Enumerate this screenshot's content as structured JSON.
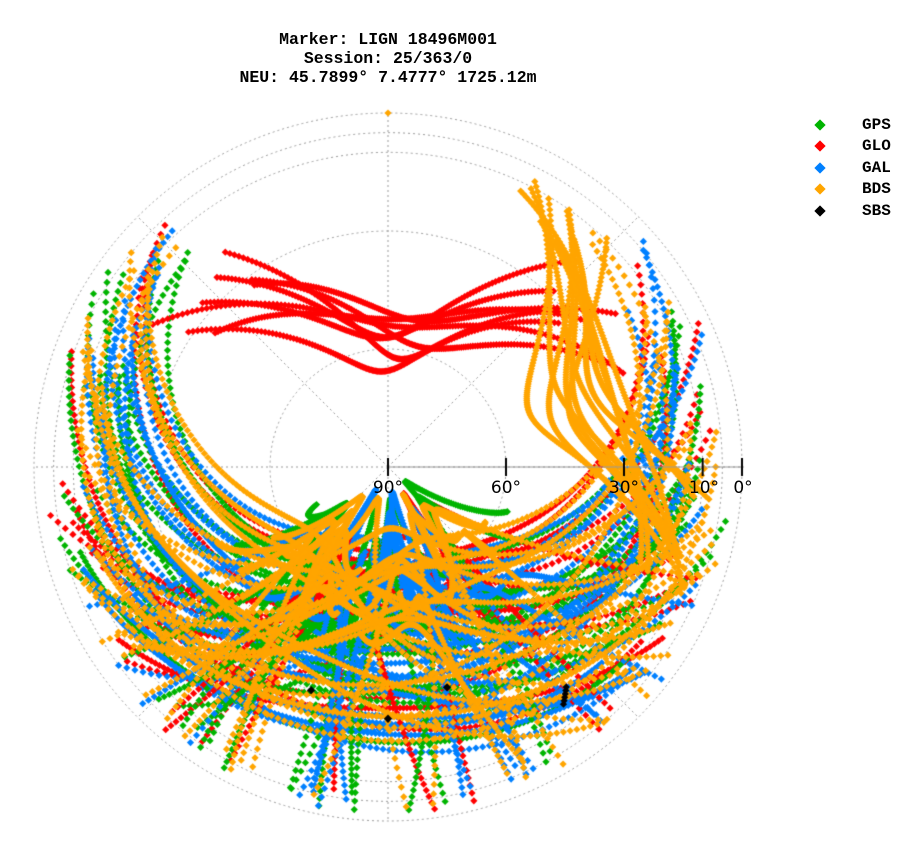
{
  "title": {
    "line1": "Marker: LIGN 18496M001",
    "line2": "Session: 25/363/0",
    "line3": "NEU: 45.7899° 7.4777° 1725.12m"
  },
  "legend": [
    {
      "label": "GPS",
      "color": "#00b400"
    },
    {
      "label": "GLO",
      "color": "#ff0000"
    },
    {
      "label": "GAL",
      "color": "#0080ff"
    },
    {
      "label": "BDS",
      "color": "#ffa500"
    },
    {
      "label": "SBS",
      "color": "#000000"
    }
  ],
  "chart_data": {
    "type": "scatter",
    "subtype": "polar-skyplot",
    "title": "Marker: LIGN 18496M001 / Session: 25/363/0 / NEU: 45.7899° 7.4777° 1725.12m",
    "radial_axis": {
      "quantity": "elevation",
      "unit": "deg",
      "center_value": 90,
      "edge_value": 0,
      "tick_labels": [
        "90°",
        "60°",
        "30°",
        "10°",
        "0°"
      ],
      "tick_values": [
        90,
        60,
        30,
        10,
        0
      ],
      "circles": [
        60,
        30,
        10,
        5,
        0
      ]
    },
    "angular_axis": {
      "quantity": "azimuth",
      "unit": "deg",
      "zero_direction": "north (top)",
      "grid_lines_every_deg": 45
    },
    "grid": true,
    "legend_position": "right",
    "series": [
      {
        "name": "GPS",
        "color": "#00b400",
        "description": "many tracks, mostly southern sky, arcs from east/west low elevations"
      },
      {
        "name": "GLO",
        "color": "#ff0000",
        "description": "tracks including dense northern loop near 45-60° elevation north, plus southern arcs"
      },
      {
        "name": "GAL",
        "color": "#0080ff",
        "description": "tracks across southern and western sky"
      },
      {
        "name": "BDS",
        "color": "#ffa500",
        "description": "dense arcs across southern sky and northeast; single point at 0° elevation azimuth 0°"
      },
      {
        "name": "SBS",
        "color": "#000000",
        "description": "few fixed points in the south: ~az 165° el ~30°, az 180° el ~25°, az 200° el ~30°, az 140° el ~15°"
      }
    ],
    "empty_region": "northern sky above ~45° elevation to horizon (north cap) mostly without data"
  }
}
